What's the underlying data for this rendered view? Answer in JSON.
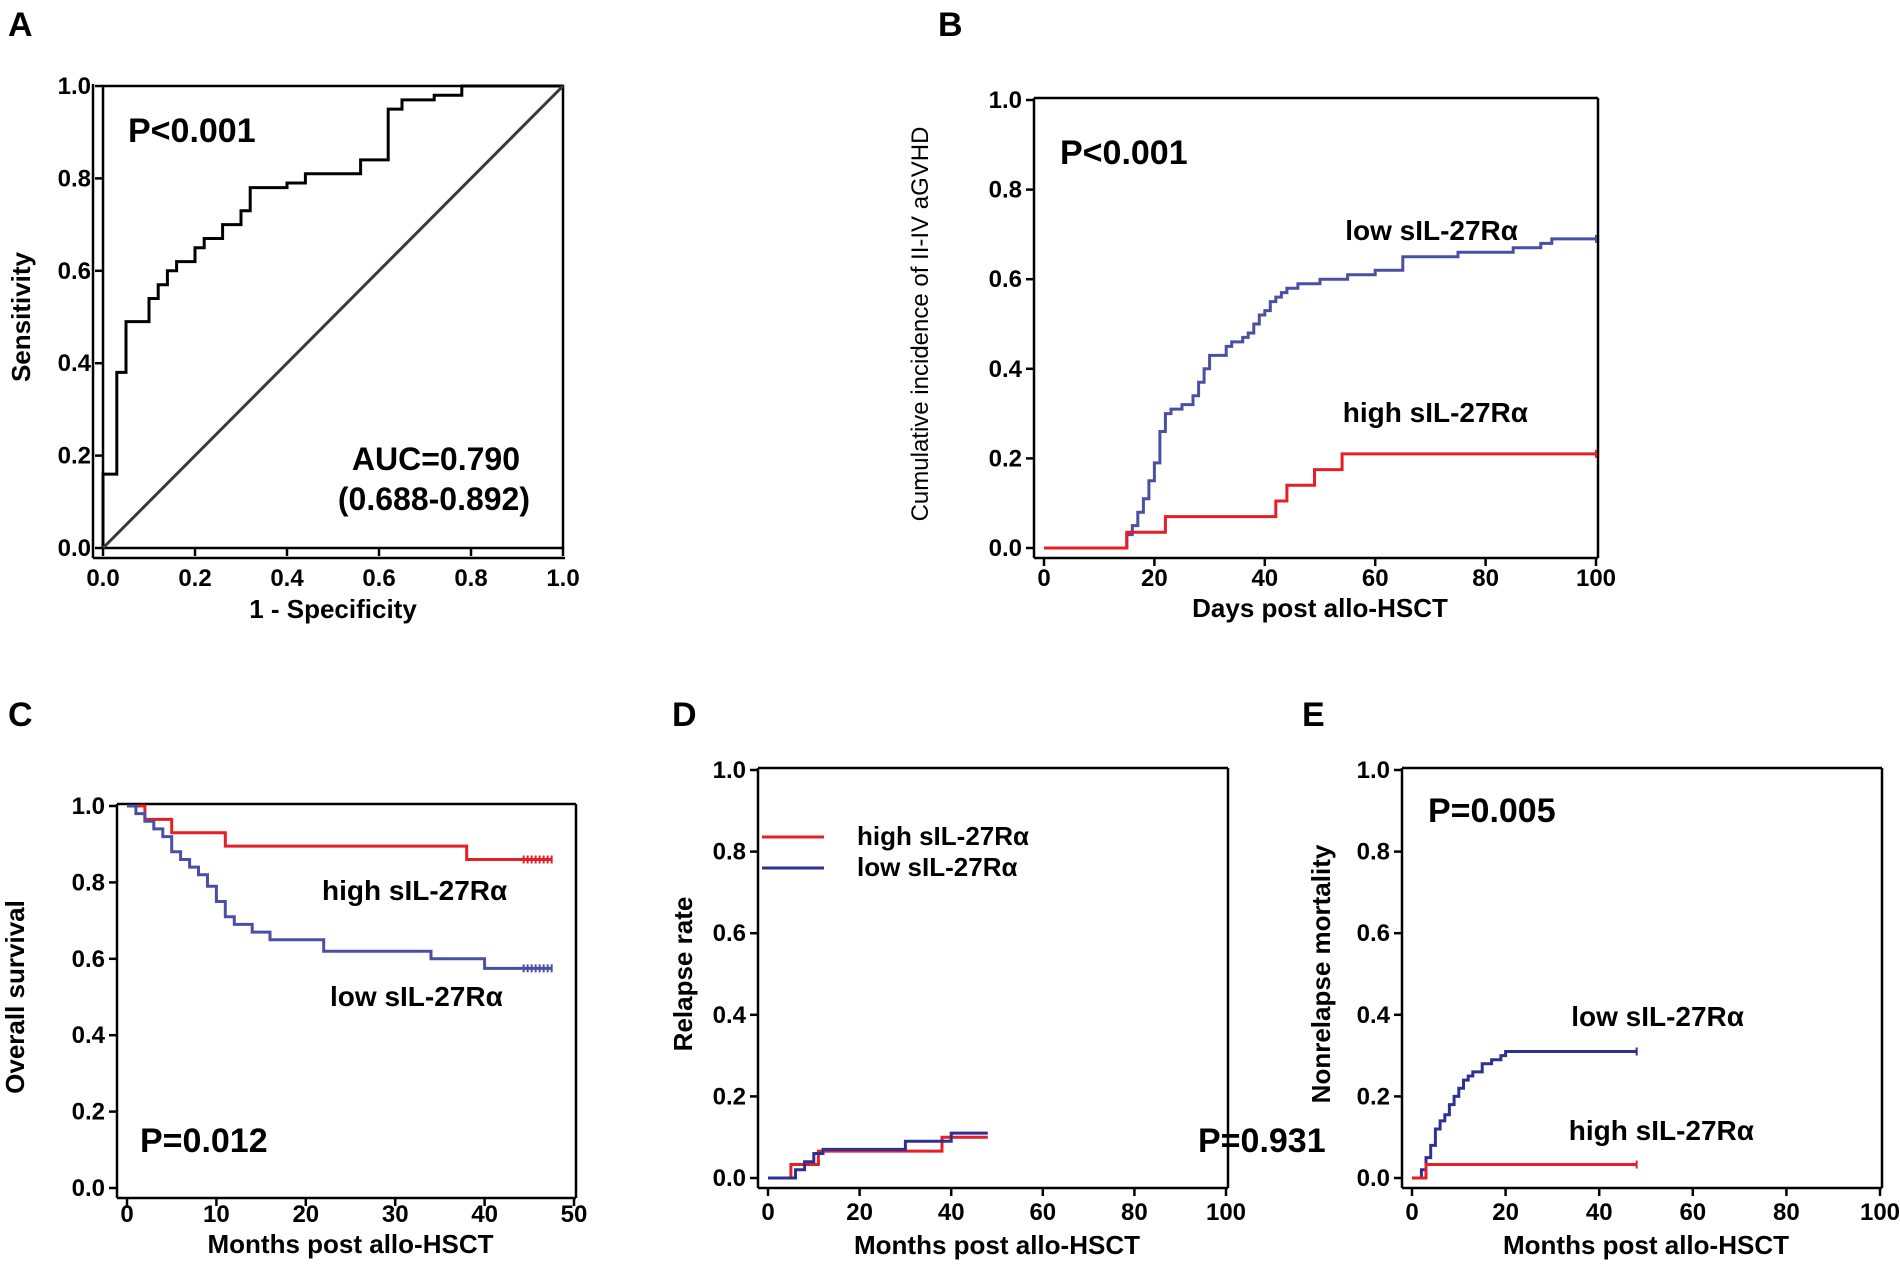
{
  "colors": {
    "red": "#e41f26",
    "blue": "#2e3192",
    "lightblue": "#4b4fa3",
    "axis": "#000000",
    "diag": "#3a3a3a"
  },
  "chart_data": [
    {
      "panel": "A",
      "type": "line",
      "title": "",
      "xlabel": "1 - Specificity",
      "ylabel": "Sensitivity",
      "xlim": [
        0,
        1
      ],
      "ylim": [
        0,
        1
      ],
      "xticks": [
        "0.0",
        "0.2",
        "0.4",
        "0.6",
        "0.8",
        "1.0"
      ],
      "yticks": [
        "0.0",
        "0.2",
        "0.4",
        "0.6",
        "0.8",
        "1.0"
      ],
      "annotations": {
        "p": "P<0.001",
        "auc": "AUC=0.790",
        "ci": "(0.688-0.892)"
      },
      "series": [
        {
          "name": "ROC",
          "color_key": "axis",
          "step": true,
          "x": [
            0,
            0,
            0.03,
            0.03,
            0.05,
            0.05,
            0.1,
            0.1,
            0.12,
            0.12,
            0.14,
            0.14,
            0.16,
            0.16,
            0.2,
            0.2,
            0.22,
            0.22,
            0.26,
            0.26,
            0.3,
            0.3,
            0.32,
            0.32,
            0.4,
            0.4,
            0.44,
            0.44,
            0.56,
            0.56,
            0.62,
            0.62,
            0.65,
            0.65,
            0.72,
            0.72,
            0.78,
            0.78,
            1.0
          ],
          "y": [
            0,
            0.16,
            0.16,
            0.38,
            0.38,
            0.49,
            0.49,
            0.54,
            0.54,
            0.57,
            0.57,
            0.6,
            0.6,
            0.62,
            0.62,
            0.65,
            0.65,
            0.67,
            0.67,
            0.7,
            0.7,
            0.73,
            0.73,
            0.78,
            0.78,
            0.79,
            0.79,
            0.81,
            0.81,
            0.84,
            0.84,
            0.95,
            0.95,
            0.97,
            0.97,
            0.98,
            0.98,
            1.0,
            1.0
          ]
        },
        {
          "name": "Reference",
          "color_key": "diag",
          "step": false,
          "x": [
            0,
            1
          ],
          "y": [
            0,
            1
          ]
        }
      ]
    },
    {
      "panel": "B",
      "type": "line",
      "title": "",
      "xlabel": "Days post allo-HSCT",
      "ylabel": "Cumulative incidence of II-IV aGVHD",
      "xlim": [
        0,
        100
      ],
      "ylim": [
        0,
        1
      ],
      "xticks": [
        "0",
        "20",
        "40",
        "60",
        "80",
        "100"
      ],
      "yticks": [
        "0.0",
        "0.2",
        "0.4",
        "0.6",
        "0.8",
        "1.0"
      ],
      "annotations": {
        "p": "P<0.001"
      },
      "series": [
        {
          "name": "low sIL-27Rα",
          "color_key": "lightblue",
          "x": [
            0,
            15,
            16,
            17,
            18,
            19,
            20,
            21,
            22,
            23,
            25,
            27,
            28,
            29,
            30,
            33,
            34,
            36,
            37,
            38,
            39,
            40,
            41,
            42,
            43,
            44,
            46,
            50,
            55,
            60,
            65,
            75,
            85,
            90,
            92,
            100
          ],
          "y": [
            0,
            0.03,
            0.05,
            0.08,
            0.11,
            0.15,
            0.19,
            0.26,
            0.3,
            0.31,
            0.32,
            0.34,
            0.37,
            0.4,
            0.43,
            0.45,
            0.46,
            0.47,
            0.48,
            0.5,
            0.52,
            0.53,
            0.55,
            0.56,
            0.57,
            0.58,
            0.59,
            0.6,
            0.61,
            0.62,
            0.65,
            0.66,
            0.67,
            0.68,
            0.69,
            0.69
          ]
        },
        {
          "name": "high sIL-27Rα",
          "color_key": "red",
          "x": [
            0,
            15,
            22,
            42,
            44,
            49,
            54,
            100
          ],
          "y": [
            0,
            0.035,
            0.07,
            0.105,
            0.14,
            0.175,
            0.21,
            0.21
          ]
        }
      ]
    },
    {
      "panel": "C",
      "type": "line",
      "title": "",
      "xlabel": "Months post allo-HSCT",
      "ylabel": "Overall survival",
      "xlim": [
        0,
        50
      ],
      "ylim": [
        0,
        1
      ],
      "xticks": [
        "0",
        "10",
        "20",
        "30",
        "40",
        "50"
      ],
      "yticks": [
        "0.0",
        "0.2",
        "0.4",
        "0.6",
        "0.8",
        "1.0"
      ],
      "annotations": {
        "p": "P=0.012"
      },
      "series": [
        {
          "name": "high sIL-27Rα",
          "color_key": "red",
          "x": [
            0,
            2,
            5,
            11,
            38,
            47.5
          ],
          "y": [
            1.0,
            0.965,
            0.93,
            0.895,
            0.86,
            0.86
          ]
        },
        {
          "name": "low sIL-27Rα",
          "color_key": "lightblue",
          "x": [
            0,
            1,
            2,
            3,
            4,
            5,
            6,
            7,
            8,
            9,
            10,
            11,
            12,
            14,
            16,
            22,
            34,
            40,
            47.5
          ],
          "y": [
            1.0,
            0.98,
            0.96,
            0.94,
            0.92,
            0.88,
            0.86,
            0.84,
            0.82,
            0.79,
            0.75,
            0.71,
            0.69,
            0.67,
            0.65,
            0.62,
            0.6,
            0.575,
            0.575
          ]
        }
      ]
    },
    {
      "panel": "D",
      "type": "line",
      "title": "",
      "xlabel": "Months post allo-HSCT",
      "ylabel": "Relapse rate",
      "xlim": [
        0,
        100
      ],
      "ylim": [
        0,
        1
      ],
      "xticks": [
        "0",
        "20",
        "40",
        "60",
        "80",
        "100"
      ],
      "yticks": [
        "0.0",
        "0.2",
        "0.4",
        "0.6",
        "0.8",
        "1.0"
      ],
      "annotations": {
        "p": "P=0.931"
      },
      "legend": [
        "high sIL-27Rα",
        "low sIL-27Rα"
      ],
      "series": [
        {
          "name": "high sIL-27Rα",
          "color_key": "red",
          "x": [
            0,
            5,
            11,
            30,
            38,
            48
          ],
          "y": [
            0,
            0.033,
            0.066,
            0.066,
            0.1,
            0.1
          ]
        },
        {
          "name": "low sIL-27Rα",
          "color_key": "blue",
          "x": [
            0,
            6,
            8,
            10,
            12,
            30,
            40,
            48
          ],
          "y": [
            0,
            0.02,
            0.04,
            0.06,
            0.07,
            0.09,
            0.11,
            0.11
          ]
        }
      ]
    },
    {
      "panel": "E",
      "type": "line",
      "title": "",
      "xlabel": "Months post allo-HSCT",
      "ylabel": "Nonrelapse mortality",
      "xlim": [
        0,
        100
      ],
      "ylim": [
        0,
        1
      ],
      "xticks": [
        "0",
        "20",
        "40",
        "60",
        "80",
        "100"
      ],
      "yticks": [
        "0.0",
        "0.2",
        "0.4",
        "0.6",
        "0.8",
        "1.0"
      ],
      "annotations": {
        "p": "P=0.005"
      },
      "series": [
        {
          "name": "low sIL-27Rα",
          "color_key": "blue",
          "x": [
            0,
            2,
            3,
            4,
            5,
            6,
            7,
            8,
            9,
            10,
            11,
            12,
            13,
            15,
            17,
            19,
            20,
            48
          ],
          "y": [
            0,
            0.02,
            0.05,
            0.08,
            0.12,
            0.14,
            0.155,
            0.18,
            0.2,
            0.22,
            0.24,
            0.25,
            0.26,
            0.28,
            0.29,
            0.3,
            0.31,
            0.31
          ]
        },
        {
          "name": "high sIL-27Rα",
          "color_key": "red",
          "x": [
            0,
            3,
            48
          ],
          "y": [
            0,
            0.033,
            0.033
          ]
        }
      ]
    }
  ],
  "panel_labels": [
    "A",
    "B",
    "C",
    "D",
    "E"
  ],
  "curve_labels": {
    "b_low": "low sIL-27Rα",
    "b_high": "high sIL-27Rα",
    "c_high": "high sIL-27Rα",
    "c_low": "low sIL-27Rα",
    "e_low": "low sIL-27Rα",
    "e_high": "high sIL-27Rα"
  }
}
